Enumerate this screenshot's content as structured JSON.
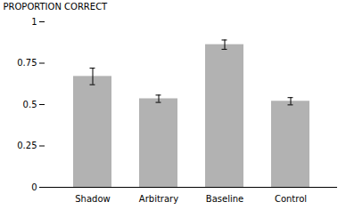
{
  "chart_data": {
    "type": "bar",
    "categories": [
      "Shadow",
      "Arbitrary",
      "Baseline",
      "Control"
    ],
    "values": [
      0.67,
      0.535,
      0.862,
      0.52
    ],
    "errors": [
      0.05,
      0.022,
      0.028,
      0.022
    ],
    "color": "#b2b2b2",
    "ylabel": "PROPORTION CORRECT",
    "ylim": [
      0,
      1.0
    ],
    "yticks": [
      0,
      0.25,
      0.5,
      0.75,
      1
    ],
    "grid": false
  }
}
